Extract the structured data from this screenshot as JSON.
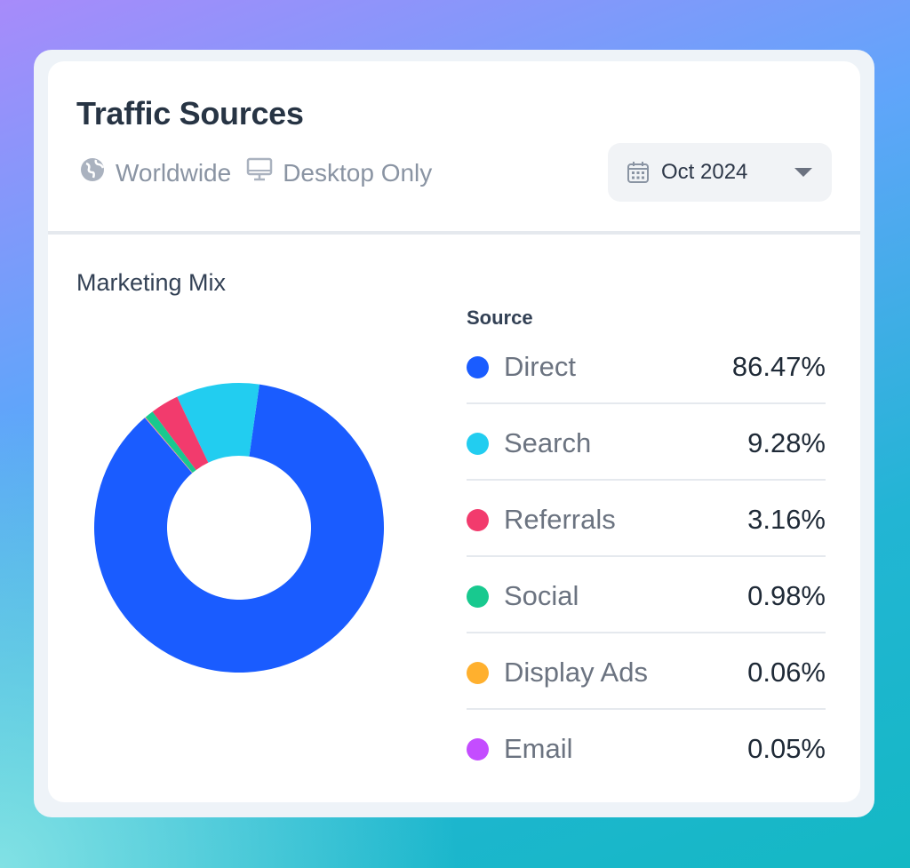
{
  "card": {
    "title": "Traffic Sources",
    "meta": [
      {
        "icon": "globe-icon",
        "label": "Worldwide"
      },
      {
        "icon": "monitor-icon",
        "label": "Desktop Only"
      }
    ],
    "date_selector": {
      "icon": "calendar-icon",
      "label": "Oct 2024"
    }
  },
  "section": {
    "title": "Marketing Mix",
    "legend_header": "Source"
  },
  "chart_data": {
    "type": "pie",
    "title": "Marketing Mix",
    "donut": true,
    "categories": [
      "Direct",
      "Search",
      "Referrals",
      "Social",
      "Display Ads",
      "Email"
    ],
    "values": [
      86.47,
      9.28,
      3.16,
      0.98,
      0.06,
      0.05
    ],
    "labels": [
      "86.47%",
      "9.28%",
      "3.16%",
      "0.98%",
      "0.06%",
      "0.05%"
    ],
    "colors": [
      "#1a5cff",
      "#22cdf0",
      "#f23b6d",
      "#18c98f",
      "#ffb02e",
      "#c44dff"
    ]
  }
}
